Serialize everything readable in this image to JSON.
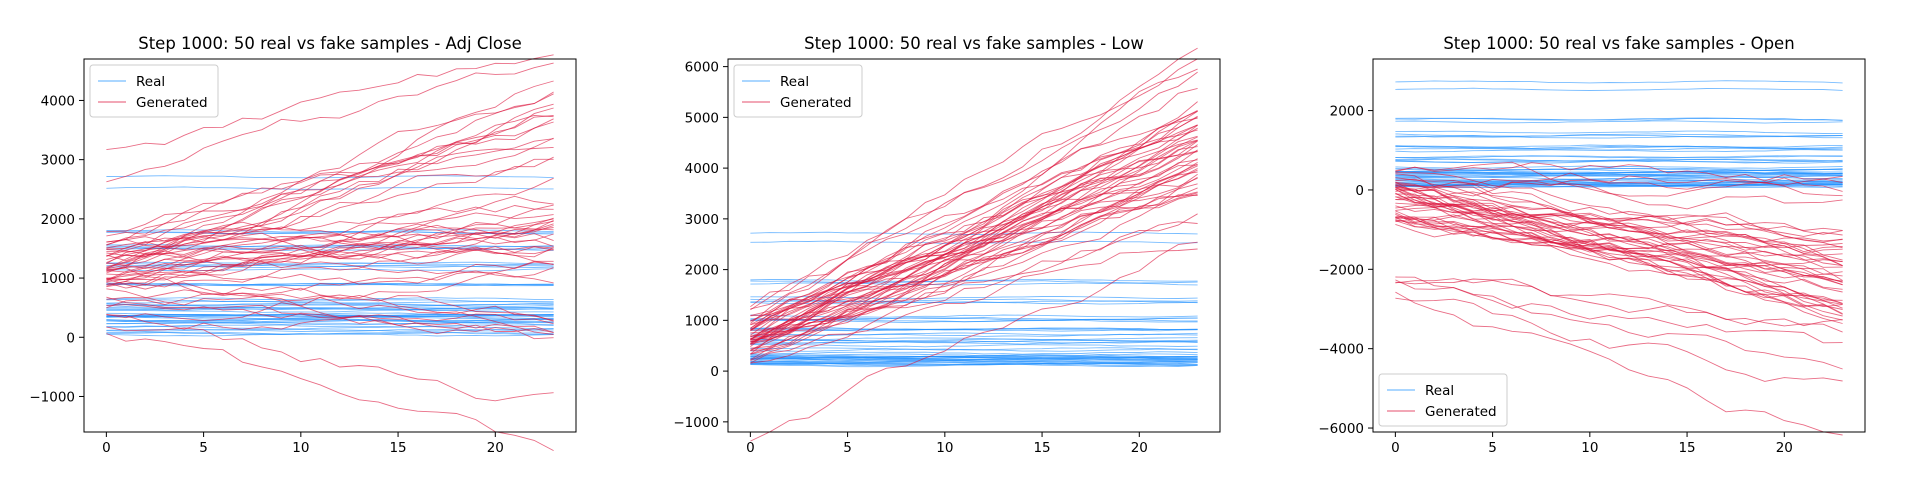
{
  "colors": {
    "real": "#1e90ff",
    "generated": "#dc143c"
  },
  "chart_data": [
    {
      "type": "line",
      "title": "Step 1000: 50 real vs fake samples - Adj Close",
      "xlabel": "",
      "ylabel": "",
      "xlim": [
        -1.15,
        24.15
      ],
      "ylim": [
        -1600,
        4700
      ],
      "xticks": [
        0,
        5,
        10,
        15,
        20
      ],
      "yticks": [
        -1000,
        0,
        1000,
        2000,
        3000,
        4000
      ],
      "legend": {
        "placement": "top-left",
        "entries": [
          "Real",
          "Generated"
        ]
      },
      "grid": false,
      "series": [
        {
          "group": "real",
          "level": 2700,
          "count": 1
        },
        {
          "group": "real",
          "level": 2550,
          "count": 1
        },
        {
          "group": "real",
          "level": 1800,
          "count": 3
        },
        {
          "group": "real",
          "level": 1500,
          "count": 4
        },
        {
          "group": "real",
          "level": 1200,
          "count": 5
        },
        {
          "group": "real",
          "level": 900,
          "count": 4
        },
        {
          "group": "real",
          "level": 600,
          "count": 6
        },
        {
          "group": "real",
          "level": 350,
          "count": 12
        },
        {
          "group": "real",
          "level": 200,
          "count": 14
        },
        {
          "group": "generated",
          "start": 1200,
          "end": 1800,
          "count": 22
        },
        {
          "group": "generated",
          "start": 1500,
          "end": 3800,
          "count": 14
        },
        {
          "group": "generated",
          "start": 700,
          "end": 700,
          "count": 10
        },
        {
          "group": "generated",
          "start": 300,
          "end": -1300,
          "count": 2
        },
        {
          "group": "generated",
          "start": 2800,
          "end": 4400,
          "count": 2
        }
      ]
    },
    {
      "type": "line",
      "title": "Step 1000: 50 real vs fake samples - Low",
      "xlabel": "",
      "ylabel": "",
      "xlim": [
        -1.15,
        24.15
      ],
      "ylim": [
        -1200,
        6150
      ],
      "xticks": [
        0,
        5,
        10,
        15,
        20
      ],
      "yticks": [
        -1000,
        0,
        1000,
        2000,
        3000,
        4000,
        5000,
        6000
      ],
      "legend": {
        "placement": "top-left",
        "entries": [
          "Real",
          "Generated"
        ]
      },
      "grid": false,
      "series": [
        {
          "group": "real",
          "level": 2700,
          "count": 1
        },
        {
          "group": "real",
          "level": 2500,
          "count": 1
        },
        {
          "group": "real",
          "level": 1750,
          "count": 3
        },
        {
          "group": "real",
          "level": 1400,
          "count": 4
        },
        {
          "group": "real",
          "level": 1050,
          "count": 5
        },
        {
          "group": "real",
          "level": 750,
          "count": 6
        },
        {
          "group": "real",
          "level": 550,
          "count": 6
        },
        {
          "group": "real",
          "level": 300,
          "count": 12
        },
        {
          "group": "real",
          "level": 180,
          "count": 12
        },
        {
          "group": "generated",
          "start": 600,
          "end": 4300,
          "count": 38
        },
        {
          "group": "generated",
          "start": 900,
          "end": 5700,
          "count": 8
        },
        {
          "group": "generated",
          "start": 300,
          "end": 2900,
          "count": 3
        },
        {
          "group": "generated",
          "start": -900,
          "end": 2100,
          "count": 1
        }
      ]
    },
    {
      "type": "line",
      "title": "Step 1000: 50 real vs fake samples - Open",
      "xlabel": "",
      "ylabel": "",
      "xlim": [
        -1.15,
        24.15
      ],
      "ylim": [
        -6100,
        3300
      ],
      "xticks": [
        0,
        5,
        10,
        15,
        20
      ],
      "yticks": [
        -6000,
        -4000,
        -2000,
        0,
        2000
      ],
      "legend": {
        "placement": "bottom-left",
        "entries": [
          "Real",
          "Generated"
        ]
      },
      "grid": false,
      "series": [
        {
          "group": "real",
          "level": 2700,
          "count": 1
        },
        {
          "group": "real",
          "level": 2500,
          "count": 1
        },
        {
          "group": "real",
          "level": 1750,
          "count": 3
        },
        {
          "group": "real",
          "level": 1400,
          "count": 4
        },
        {
          "group": "real",
          "level": 1050,
          "count": 5
        },
        {
          "group": "real",
          "level": 750,
          "count": 6
        },
        {
          "group": "real",
          "level": 500,
          "count": 6
        },
        {
          "group": "real",
          "level": 330,
          "count": 12
        },
        {
          "group": "real",
          "level": 220,
          "count": 12
        },
        {
          "group": "generated",
          "start": -300,
          "end": -2200,
          "count": 38
        },
        {
          "group": "generated",
          "start": 200,
          "end": -600,
          "count": 6
        },
        {
          "group": "generated",
          "start": -2000,
          "end": -3600,
          "count": 4
        },
        {
          "group": "generated",
          "start": -2400,
          "end": -5700,
          "count": 2
        }
      ]
    }
  ]
}
